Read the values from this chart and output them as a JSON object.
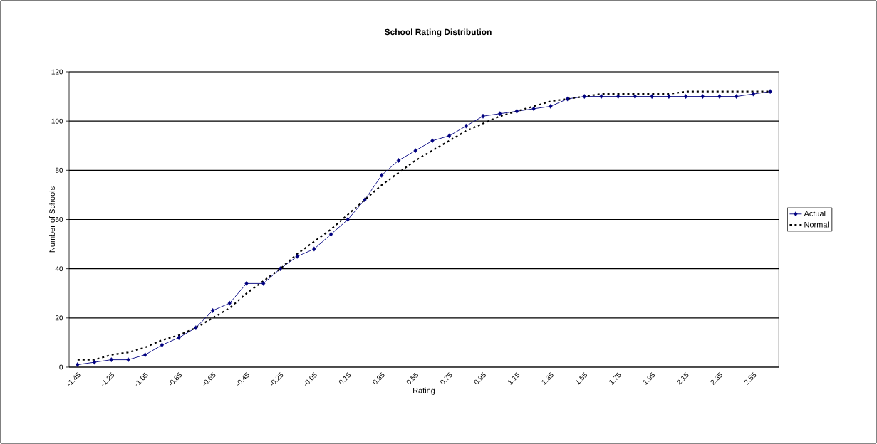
{
  "chart_data": {
    "type": "line",
    "title": "School Rating Distribution",
    "xlabel": "Rating",
    "ylabel": "Number of Schools",
    "categories": [
      "-1.45",
      null,
      "-1.25",
      null,
      "-1.05",
      null,
      "-0.85",
      null,
      "-0.65",
      null,
      "-0.45",
      null,
      "-0.25",
      null,
      "-0.05",
      null,
      "0.15",
      null,
      "0.35",
      null,
      "0.55",
      null,
      "0.75",
      null,
      "0.95",
      null,
      "1.15",
      null,
      "1.35",
      null,
      "1.55",
      null,
      "1.75",
      null,
      "1.95",
      null,
      "2.15",
      null,
      "2.35",
      null,
      "2.55",
      null
    ],
    "series": [
      {
        "name": "Actual",
        "color": "#000080",
        "marker": "diamond",
        "line_style": "solid",
        "values": [
          1,
          2,
          3,
          3,
          5,
          9,
          12,
          16,
          23,
          26,
          34,
          34,
          40,
          45,
          48,
          54,
          60,
          68,
          78,
          84,
          88,
          92,
          94,
          98,
          102,
          103,
          104,
          105,
          106,
          109,
          110,
          110,
          110,
          110,
          110,
          110,
          110,
          110,
          110,
          110,
          111,
          112
        ]
      },
      {
        "name": "Normal",
        "color": "#000000",
        "marker": "none",
        "line_style": "dotted",
        "values": [
          3,
          3,
          5,
          6,
          8,
          11,
          13,
          16,
          20,
          24,
          30,
          35,
          40,
          46,
          51,
          56,
          62,
          68,
          74,
          79,
          84,
          88,
          92,
          96,
          99,
          102,
          104,
          106,
          108,
          109,
          110,
          111,
          111,
          111,
          111,
          111,
          112,
          112,
          112,
          112,
          112,
          112
        ]
      }
    ],
    "ylim": [
      0,
      120
    ],
    "yticks": [
      0,
      20,
      40,
      60,
      80,
      100,
      120
    ],
    "grid": "y",
    "legend": "right"
  }
}
